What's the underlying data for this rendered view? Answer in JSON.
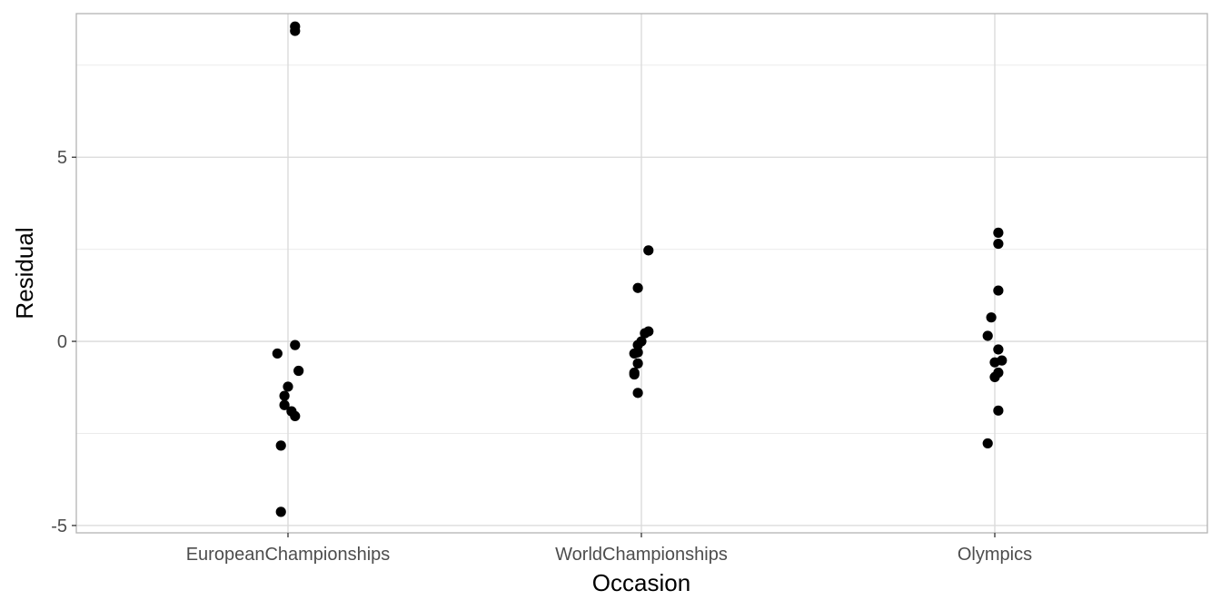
{
  "chart_data": {
    "type": "scatter",
    "title": "",
    "xlabel": "Occasion",
    "ylabel": "Residual",
    "categories": [
      "EuropeanChampionships",
      "WorldChampionships",
      "Olympics"
    ],
    "ylim": [
      -5.2,
      8.9
    ],
    "y_ticks": [
      -5,
      0,
      5
    ],
    "y_tick_labels": [
      "-5",
      "0",
      "5"
    ],
    "grid": true,
    "colors": {
      "point": "#000000",
      "grid_major": "#d9d9d9",
      "grid_minor": "#ebebeb",
      "border": "#b3b3b3"
    },
    "points": [
      {
        "category": "EuropeanChampionships",
        "jitter": 0.02,
        "y": 8.55
      },
      {
        "category": "EuropeanChampionships",
        "jitter": 0.02,
        "y": 8.43
      },
      {
        "category": "EuropeanChampionships",
        "jitter": 0.02,
        "y": -0.1
      },
      {
        "category": "EuropeanChampionships",
        "jitter": -0.03,
        "y": -0.33
      },
      {
        "category": "EuropeanChampionships",
        "jitter": 0.03,
        "y": -0.8
      },
      {
        "category": "EuropeanChampionships",
        "jitter": 0.0,
        "y": -1.23
      },
      {
        "category": "EuropeanChampionships",
        "jitter": -0.01,
        "y": -1.48
      },
      {
        "category": "EuropeanChampionships",
        "jitter": -0.01,
        "y": -1.73
      },
      {
        "category": "EuropeanChampionships",
        "jitter": 0.01,
        "y": -1.9
      },
      {
        "category": "EuropeanChampionships",
        "jitter": 0.02,
        "y": -2.03
      },
      {
        "category": "EuropeanChampionships",
        "jitter": -0.02,
        "y": -2.83
      },
      {
        "category": "EuropeanChampionships",
        "jitter": -0.02,
        "y": -4.63
      },
      {
        "category": "WorldChampionships",
        "jitter": 0.02,
        "y": 2.47
      },
      {
        "category": "WorldChampionships",
        "jitter": -0.01,
        "y": 1.45
      },
      {
        "category": "WorldChampionships",
        "jitter": 0.02,
        "y": 0.27
      },
      {
        "category": "WorldChampionships",
        "jitter": 0.01,
        "y": 0.22
      },
      {
        "category": "WorldChampionships",
        "jitter": 0.0,
        "y": 0.0
      },
      {
        "category": "WorldChampionships",
        "jitter": -0.01,
        "y": -0.1
      },
      {
        "category": "WorldChampionships",
        "jitter": -0.01,
        "y": -0.3
      },
      {
        "category": "WorldChampionships",
        "jitter": -0.02,
        "y": -0.33
      },
      {
        "category": "WorldChampionships",
        "jitter": -0.01,
        "y": -0.6
      },
      {
        "category": "WorldChampionships",
        "jitter": -0.02,
        "y": -0.85
      },
      {
        "category": "WorldChampionships",
        "jitter": -0.02,
        "y": -0.9
      },
      {
        "category": "WorldChampionships",
        "jitter": -0.01,
        "y": -1.4
      },
      {
        "category": "Olympics",
        "jitter": 0.01,
        "y": 2.95
      },
      {
        "category": "Olympics",
        "jitter": 0.01,
        "y": 2.65
      },
      {
        "category": "Olympics",
        "jitter": 0.01,
        "y": 1.38
      },
      {
        "category": "Olympics",
        "jitter": -0.01,
        "y": 0.65
      },
      {
        "category": "Olympics",
        "jitter": -0.02,
        "y": 0.15
      },
      {
        "category": "Olympics",
        "jitter": 0.01,
        "y": -0.22
      },
      {
        "category": "Olympics",
        "jitter": 0.02,
        "y": -0.52
      },
      {
        "category": "Olympics",
        "jitter": 0.0,
        "y": -0.57
      },
      {
        "category": "Olympics",
        "jitter": 0.01,
        "y": -0.85
      },
      {
        "category": "Olympics",
        "jitter": 0.0,
        "y": -0.97
      },
      {
        "category": "Olympics",
        "jitter": 0.01,
        "y": -1.88
      },
      {
        "category": "Olympics",
        "jitter": -0.02,
        "y": -2.77
      }
    ]
  }
}
